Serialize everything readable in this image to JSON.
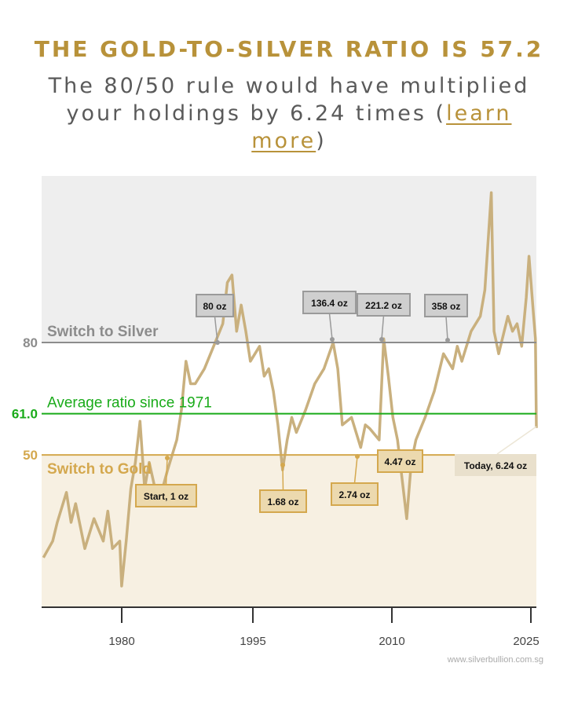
{
  "header": {
    "title": "THE GOLD-TO-SILVER RATIO IS 57.2",
    "subtitle_before": "The 80/50 rule would have multiplied your holdings by 6.24 times (",
    "subtitle_link": "learn more",
    "subtitle_after": ")"
  },
  "colors": {
    "gold": "#b8923a",
    "line": "#c9b07e",
    "silver_zone": "#eeeeee",
    "gold_zone": "#f7f0e2",
    "average": "#1aab1a",
    "threshold_silver": "#8c8c8c",
    "threshold_gold": "#d4a84e"
  },
  "chart_data": {
    "type": "line",
    "xlabel": "",
    "ylabel": "",
    "xlim": [
      1971.3,
      2025.1
    ],
    "ylim": [
      9,
      124
    ],
    "x_ticks": [
      "1980",
      "1995",
      "2010",
      "2025"
    ],
    "grid": false,
    "series": [
      {
        "x": [
          1971.5,
          1972.5,
          1973,
          1974,
          1974.5,
          1975,
          1976,
          1977,
          1978,
          1978.5,
          1979,
          1979.8,
          1980,
          1980.5,
          1981,
          1981.5,
          1982,
          1982.5,
          1983,
          1984,
          1985,
          1986,
          1986.5,
          1987,
          1987.5,
          1988,
          1989,
          1990,
          1991,
          1991.5,
          1992,
          1992.5,
          1993,
          1993.5,
          1994,
          1995,
          1995.5,
          1996,
          1996.5,
          1997,
          1997.5,
          1998,
          1998.5,
          1999,
          2000,
          2001,
          2002,
          2003,
          2003.5,
          2004,
          2005,
          2006,
          2006.5,
          2007,
          2008,
          2008.5,
          2009,
          2009.5,
          2010,
          2011,
          2011.5,
          2012,
          2013,
          2014,
          2015,
          2016,
          2016.5,
          2017,
          2018,
          2019,
          2019.5,
          2020.2,
          2020.5,
          2021,
          2022,
          2022.5,
          2023,
          2023.5,
          2024,
          2024.3,
          2024.8,
          2025,
          2025.1
        ],
        "y": [
          22.6,
          27,
          32,
          40,
          32,
          37,
          25,
          33,
          27,
          35,
          25,
          27,
          15,
          27,
          41,
          48,
          59,
          41,
          48,
          37,
          46,
          54,
          62,
          75,
          69,
          69,
          73,
          79,
          85,
          96,
          98,
          83,
          90,
          83,
          75,
          79,
          71,
          73,
          67,
          58,
          46,
          54,
          60,
          56,
          62,
          69,
          73,
          80,
          73,
          58,
          60,
          52,
          58,
          57,
          54,
          81,
          71,
          60,
          54,
          33,
          48,
          54,
          60,
          67,
          77,
          73,
          79,
          75,
          83,
          87,
          94,
          120,
          83,
          77,
          87,
          83,
          85,
          79,
          92,
          103,
          87,
          81,
          57.2
        ]
      }
    ],
    "reference_lines": [
      {
        "value": 80,
        "tick_label": "80",
        "label": "Switch to Silver"
      },
      {
        "value": 61.0,
        "tick_label": "61.0",
        "label": "Average ratio since 1971"
      },
      {
        "value": 50,
        "tick_label": "50",
        "label": "Switch to Gold"
      }
    ],
    "annotations": [
      {
        "label": "Start, 1 oz",
        "type": "gold"
      },
      {
        "label": "80 oz",
        "type": "silver"
      },
      {
        "label": "1.68 oz",
        "type": "gold"
      },
      {
        "label": "136.4 oz",
        "type": "silver"
      },
      {
        "label": "2.74 oz",
        "type": "gold"
      },
      {
        "label": "221.2 oz",
        "type": "silver"
      },
      {
        "label": "4.47 oz",
        "type": "gold"
      },
      {
        "label": "358 oz",
        "type": "silver"
      },
      {
        "label": "Today, 6.24 oz",
        "type": "today"
      }
    ],
    "source": "www.silverbullion.com.sg"
  }
}
